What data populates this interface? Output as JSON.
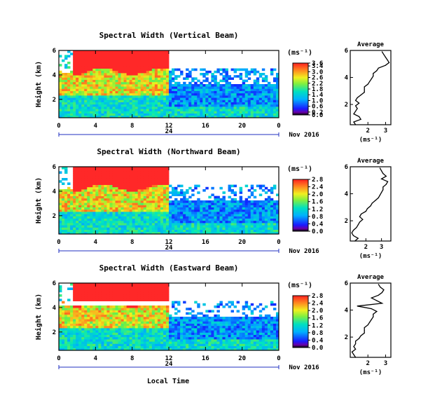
{
  "figure": {
    "x_axis_label": "Local Time",
    "date_label": "Nov 2016",
    "day_label": "24",
    "unit_label": "(ms⁻¹)"
  },
  "chart_data": [
    {
      "type": "heatmap",
      "title": "Spectral Width (Vertical Beam)",
      "ylabel": "Height (km)",
      "xlabel": "Local Time",
      "x_ticks": [
        "0",
        "4",
        "8",
        "12",
        "16",
        "20",
        "0"
      ],
      "y_ticks": [
        "6",
        "4",
        "2"
      ],
      "xlim": [
        0,
        24
      ],
      "ylim": [
        0.5,
        6
      ],
      "colorbar": {
        "label": "(ms⁻¹)",
        "ticks": [
          "3.6",
          "3.4",
          "3.0",
          "2.6",
          "2.2",
          "1.8",
          "1.4",
          "1.0",
          "0.6",
          "0.2",
          "0.0"
        ],
        "min": 0,
        "max": 3.6
      },
      "profile": {
        "title": "Average",
        "xlabel": "(ms⁻¹)",
        "x_ticks": [
          "2",
          "3"
        ],
        "y_ticks": [
          "6",
          "4",
          "2"
        ],
        "xlim": [
          1.0,
          3.3
        ],
        "heights": [
          0.5,
          0.7,
          0.9,
          1.1,
          1.3,
          1.5,
          1.7,
          1.9,
          2.1,
          2.3,
          2.5,
          2.7,
          2.9,
          3.1,
          3.3,
          3.5,
          3.7,
          3.9,
          4.1,
          4.3,
          4.5,
          4.7,
          4.9,
          5.1,
          5.3,
          5.5,
          5.7,
          5.9
        ],
        "values": [
          1.3,
          1.2,
          1.6,
          1.5,
          1.2,
          1.3,
          1.4,
          1.3,
          1.5,
          1.3,
          1.4,
          1.6,
          1.8,
          1.8,
          1.8,
          2.0,
          2.1,
          2.2,
          2.3,
          2.3,
          2.5,
          2.6,
          3.0,
          3.2,
          3.1,
          3.0,
          2.9,
          2.8
        ]
      }
    },
    {
      "type": "heatmap",
      "title": "Spectral Width (Northward Beam)",
      "ylabel": "Height (km)",
      "xlabel": "Local Time",
      "x_ticks": [
        "0",
        "4",
        "8",
        "12",
        "16",
        "20",
        "0"
      ],
      "y_ticks": [
        "6",
        "4",
        "2"
      ],
      "xlim": [
        0,
        24
      ],
      "ylim": [
        0.5,
        6
      ],
      "colorbar": {
        "label": "(ms⁻¹)",
        "ticks": [
          "2.8",
          "2.4",
          "2.0",
          "1.6",
          "1.2",
          "0.8",
          "0.4",
          "0.0"
        ],
        "min": 0,
        "max": 2.8
      },
      "profile": {
        "title": "Average",
        "xlabel": "(ms⁻¹)",
        "x_ticks": [
          "2",
          "3"
        ],
        "y_ticks": [
          "6",
          "4",
          "2"
        ],
        "xlim": [
          1.0,
          3.6
        ],
        "heights": [
          0.5,
          0.7,
          0.9,
          1.1,
          1.3,
          1.5,
          1.7,
          1.9,
          2.1,
          2.3,
          2.5,
          2.7,
          2.9,
          3.1,
          3.3,
          3.5,
          3.7,
          3.9,
          4.1,
          4.3,
          4.5,
          4.7,
          4.9,
          5.1,
          5.3,
          5.5,
          5.7,
          5.9
        ],
        "values": [
          1.3,
          1.5,
          1.2,
          1.1,
          1.2,
          1.4,
          1.5,
          1.6,
          1.8,
          1.6,
          1.7,
          2.0,
          2.1,
          2.3,
          2.4,
          2.6,
          2.8,
          2.9,
          3.0,
          3.1,
          3.1,
          3.3,
          3.4,
          3.0,
          3.3,
          3.1,
          3.0,
          2.9
        ]
      }
    },
    {
      "type": "heatmap",
      "title": "Spectral Width (Eastward Beam)",
      "ylabel": "Height (km)",
      "xlabel": "Local Time",
      "x_ticks": [
        "0",
        "4",
        "8",
        "12",
        "16",
        "20",
        "0"
      ],
      "y_ticks": [
        "6",
        "4",
        "2"
      ],
      "xlim": [
        0,
        24
      ],
      "ylim": [
        0.5,
        6
      ],
      "colorbar": {
        "label": "(ms⁻¹)",
        "ticks": [
          "2.8",
          "2.4",
          "2.0",
          "1.6",
          "1.2",
          "0.8",
          "0.4",
          "0.0"
        ],
        "min": 0,
        "max": 2.8
      },
      "profile": {
        "title": "Average",
        "xlabel": "(ms⁻¹)",
        "x_ticks": [
          "2",
          "3"
        ],
        "y_ticks": [
          "6",
          "4",
          "2"
        ],
        "xlim": [
          1.0,
          3.3
        ],
        "heights": [
          0.5,
          0.7,
          0.9,
          1.1,
          1.3,
          1.5,
          1.7,
          1.9,
          2.1,
          2.3,
          2.5,
          2.7,
          2.9,
          3.1,
          3.3,
          3.5,
          3.7,
          3.9,
          4.1,
          4.3,
          4.5,
          4.7,
          4.9,
          5.1,
          5.3,
          5.5,
          5.7,
          5.9
        ],
        "values": [
          1.3,
          1.2,
          1.1,
          1.3,
          1.2,
          1.3,
          1.3,
          1.5,
          1.6,
          1.8,
          1.8,
          1.8,
          2.0,
          2.1,
          2.2,
          2.3,
          2.3,
          2.5,
          2.2,
          1.4,
          2.8,
          2.5,
          2.2,
          2.6,
          2.8,
          2.9,
          2.7,
          2.6
        ]
      }
    }
  ]
}
